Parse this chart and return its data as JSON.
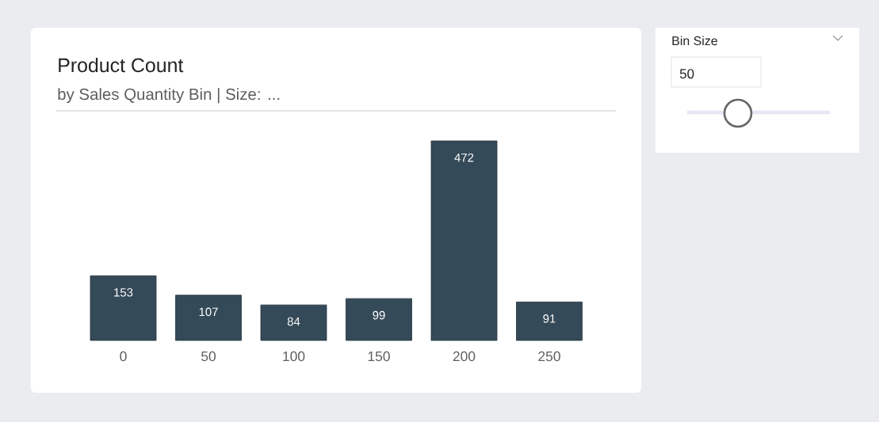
{
  "chart_data": [
    {
      "type": "bar",
      "title": "Product Count",
      "subtitle": "by Sales Quantity Bin | Size: ...",
      "categories": [
        "0",
        "50",
        "100",
        "150",
        "200",
        "250"
      ],
      "values": [
        153,
        107,
        84,
        99,
        472,
        91
      ],
      "color": "#354a58",
      "data_labels": true
    },
    {
      "type": "other",
      "title": "Bin Size",
      "annotations": [
        "50"
      ]
    }
  ]
}
